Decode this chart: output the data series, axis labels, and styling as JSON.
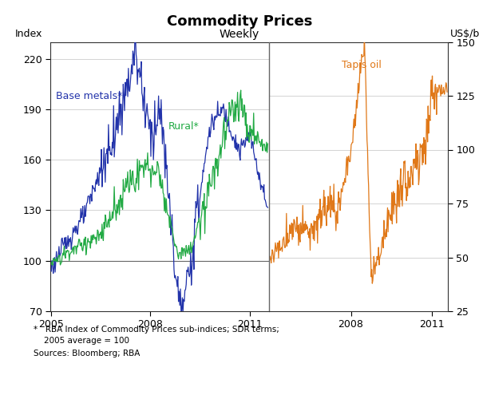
{
  "title": "Commodity Prices",
  "subtitle": "Weekly",
  "left_ylabel": "Index",
  "right_ylabel": "US$/b",
  "left_ylim": [
    70,
    230
  ],
  "right_ylim": [
    25,
    150
  ],
  "left_yticks": [
    70,
    100,
    130,
    160,
    190,
    220
  ],
  "right_yticks": [
    25,
    50,
    75,
    100,
    125,
    150
  ],
  "footnote_line1": "*   RBA Index of Commodity Prices sub-indices; SDR terms;",
  "footnote_line2": "    2005 average = 100",
  "footnote_line3": "Sources: Bloomberg; RBA",
  "base_metals_label": "Base metals*",
  "rural_label": "Rural*",
  "oil_label": "Tapis oil",
  "base_metals_color": "#2233AA",
  "rural_color": "#22AA44",
  "oil_color": "#E07818",
  "left_xticks": [
    2005,
    2008,
    2011
  ],
  "right_xticks": [
    2008,
    2011
  ],
  "grid_color": "#cccccc",
  "hline_value": 100,
  "divider_color": "#666666",
  "spine_color": "#333333"
}
